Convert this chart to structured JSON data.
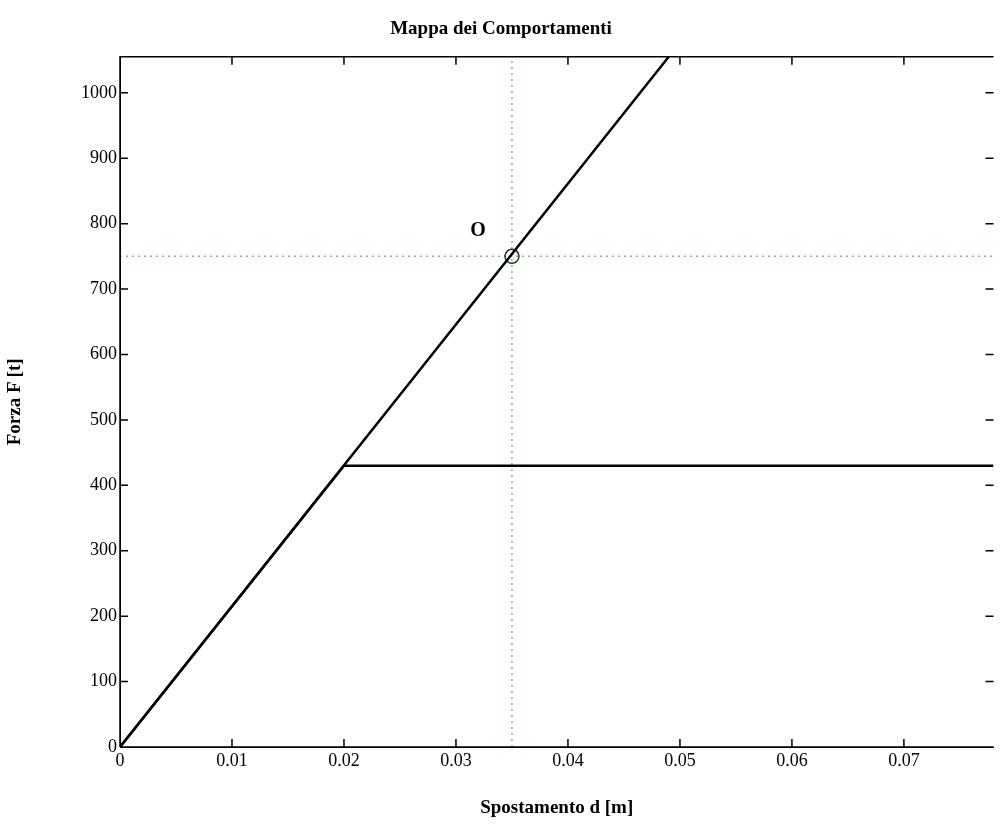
{
  "chart_data": {
    "type": "line",
    "title": "Mappa dei Comportamenti",
    "xlabel": "Spostamento d [m]",
    "ylabel": "Forza F [t]",
    "xlim": [
      0,
      0.078
    ],
    "ylim": [
      0,
      1055
    ],
    "xticks": [
      0,
      0.01,
      0.02,
      0.03,
      0.04,
      0.05,
      0.06,
      0.07
    ],
    "yticks": [
      0,
      100,
      200,
      300,
      400,
      500,
      600,
      700,
      800,
      900,
      1000
    ],
    "grid": false,
    "legend": false,
    "line_style": "solid",
    "marker": "none",
    "series": [
      {
        "color": "#000000",
        "x": [
          0,
          0.049
        ],
        "values": [
          0,
          1055
        ]
      },
      {
        "color": "#000000",
        "x": [
          0,
          0.02,
          0.078
        ],
        "values": [
          0,
          430,
          430
        ]
      },
      {
        "type": "scatter",
        "marker": "circle",
        "color": "#203a20",
        "x": [
          0.035
        ],
        "values": [
          750
        ]
      }
    ],
    "ref_lines": [
      {
        "axis": "x",
        "value": 0.035,
        "color": "#66cc66",
        "line_style": "dotted"
      },
      {
        "axis": "y",
        "value": 750,
        "color": "#66cc66",
        "line_style": "dotted"
      }
    ],
    "annotations": [
      {
        "text": "O",
        "x": 0.035,
        "y": 750
      }
    ]
  }
}
